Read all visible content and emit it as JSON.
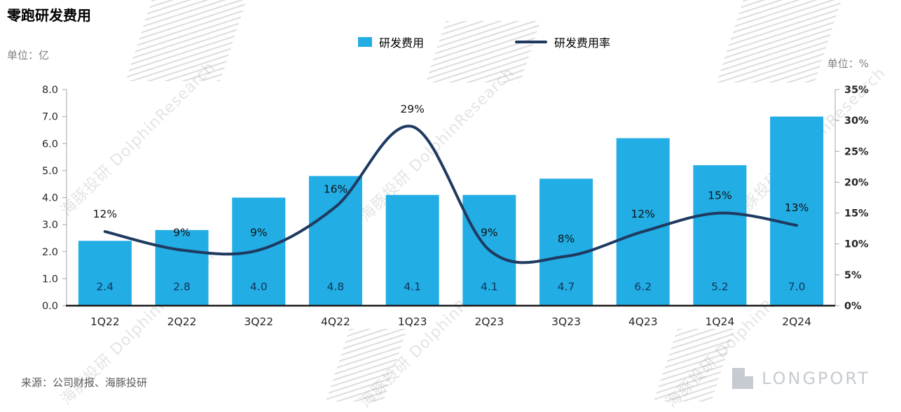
{
  "title": "零跑研发费用",
  "units": {
    "left": "单位：亿",
    "right": "单位：%"
  },
  "legend": [
    {
      "label": "研发费用",
      "marker": "bar-swatch",
      "color": "#22ADE5"
    },
    {
      "label": "研发费用率",
      "marker": "line-swatch",
      "color": "#1F3A60"
    }
  ],
  "source": "来源：公司财报、海豚投研",
  "watermark_text": "海豚投研 DolphinResearch",
  "brand": "LONGPORT",
  "colors": {
    "bar": "#22ADE5",
    "line": "#1F3A60",
    "bar_label": "#12355B",
    "axis_line": "#A6A6A6",
    "baseline": "#1A1A1A",
    "tick_text": "#262626",
    "pct_label": "#111111"
  },
  "chart_data": {
    "type": "bar+line",
    "title": "零跑研发费用",
    "categories": [
      "1Q22",
      "2Q22",
      "3Q22",
      "4Q22",
      "1Q23",
      "2Q23",
      "3Q23",
      "4Q23",
      "1Q24",
      "2Q24"
    ],
    "series": [
      {
        "name": "研发费用",
        "type": "bar",
        "axis": "left",
        "values": [
          2.4,
          2.8,
          4.0,
          4.8,
          4.1,
          4.1,
          4.7,
          6.2,
          5.2,
          7.0
        ],
        "labels": [
          "2.4",
          "2.8",
          "4.0",
          "4.8",
          "4.1",
          "4.1",
          "4.7",
          "6.2",
          "5.2",
          "7.0"
        ]
      },
      {
        "name": "研发费用率",
        "type": "line",
        "axis": "right",
        "values": [
          12,
          9,
          9,
          16,
          29,
          9,
          8,
          12,
          15,
          13
        ],
        "labels": [
          "12%",
          "9%",
          "9%",
          "16%",
          "29%",
          "9%",
          "8%",
          "12%",
          "15%",
          "13%"
        ]
      }
    ],
    "left_axis": {
      "min": 0,
      "max": 8,
      "step": 1,
      "ticks": [
        "0.0",
        "1.0",
        "2.0",
        "3.0",
        "4.0",
        "5.0",
        "6.0",
        "7.0",
        "8.0"
      ]
    },
    "right_axis": {
      "min": 0,
      "max": 35,
      "step": 5,
      "ticks": [
        "0%",
        "5%",
        "10%",
        "15%",
        "20%",
        "25%",
        "30%",
        "35%"
      ]
    },
    "grid": false,
    "legend_position": "top"
  }
}
